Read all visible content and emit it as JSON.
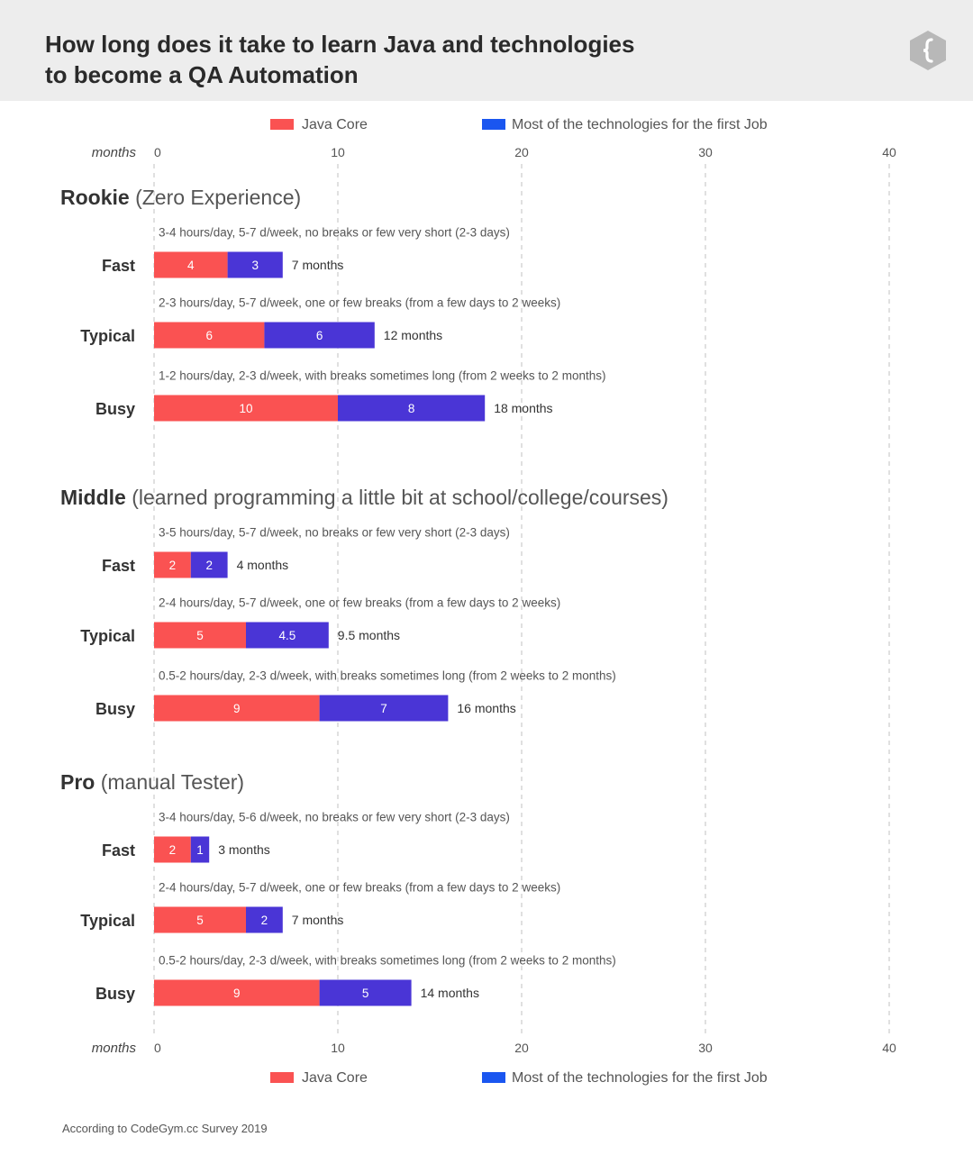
{
  "header": {
    "title": "How long does it take to learn Java and technologies\nto become a QA Automation",
    "logo_icon": "codegym-brace-hexagon-icon"
  },
  "footnote": "According to CodeGym.cc Survey 2019",
  "colors": {
    "java_core": "#fa5252",
    "technologies": "#4a35d6",
    "legend_technologies": "#1a56f0",
    "grid": "#cccccc",
    "header_bg": "#ededed"
  },
  "chart_data": {
    "type": "bar",
    "orientation": "horizontal",
    "stacked": true,
    "axis_label": "months",
    "xlim": [
      0,
      40
    ],
    "ticks": [
      0,
      10,
      20,
      30,
      40
    ],
    "grid": true,
    "legend": [
      "Java Core",
      "Most of the technologies for the first Job"
    ],
    "legend_position": "top and bottom",
    "groups": [
      {
        "name": "Rookie",
        "subtitle": "(Zero Experience)",
        "rows": [
          {
            "label": "Fast",
            "description": "3-4 hours/day, 5-7 d/week, no breaks or few very short (2-3 days)",
            "java_core": 4,
            "java_core_label": "4",
            "technologies": 3,
            "technologies_label": "3",
            "total_label": "7 months"
          },
          {
            "label": "Typical",
            "description": "2-3 hours/day, 5-7 d/week, one or few breaks (from a few days to 2 weeks)",
            "java_core": 6,
            "java_core_label": "6",
            "technologies": 6,
            "technologies_label": "6",
            "total_label": "12 months"
          },
          {
            "label": "Busy",
            "description": "1-2 hours/day, 2-3 d/week, with breaks sometimes long (from 2 weeks to 2 months)",
            "java_core": 10,
            "java_core_label": "10",
            "technologies": 8,
            "technologies_label": "8",
            "total_label": "18 months"
          }
        ]
      },
      {
        "name": "Middle",
        "subtitle": "(learned programming a little bit at school/college/courses)",
        "rows": [
          {
            "label": "Fast",
            "description": "3-5 hours/day, 5-7 d/week, no breaks or few very short (2-3 days)",
            "java_core": 2,
            "java_core_label": "2",
            "technologies": 2,
            "technologies_label": "2",
            "total_label": "4 months"
          },
          {
            "label": "Typical",
            "description": "2-4 hours/day, 5-7 d/week, one or few breaks (from a few days to 2 weeks)",
            "java_core": 5,
            "java_core_label": "5",
            "technologies": 4.5,
            "technologies_label": "4.5",
            "total_label": "9.5 months"
          },
          {
            "label": "Busy",
            "description": "0.5-2 hours/day, 2-3 d/week, with breaks sometimes long (from 2 weeks to 2 months)",
            "java_core": 9,
            "java_core_label": "9",
            "technologies": 7,
            "technologies_label": "7",
            "total_label": "16 months"
          }
        ]
      },
      {
        "name": "Pro",
        "subtitle": "(manual Tester)",
        "rows": [
          {
            "label": "Fast",
            "description": "3-4 hours/day, 5-6 d/week, no breaks or few very short (2-3 days)",
            "java_core": 2,
            "java_core_label": "2",
            "technologies": 1,
            "technologies_label": "1",
            "total_label": "3 months"
          },
          {
            "label": "Typical",
            "description": "2-4 hours/day, 5-7 d/week, one or few breaks (from a few days to 2 weeks)",
            "java_core": 5,
            "java_core_label": "5",
            "technologies": 2,
            "technologies_label": "2",
            "total_label": "7 months"
          },
          {
            "label": "Busy",
            "description": "0.5-2 hours/day, 2-3 d/week, with breaks sometimes long (from 2 weeks to 2 months)",
            "java_core": 9,
            "java_core_label": "9",
            "technologies": 5,
            "technologies_label": "5",
            "total_label": "14 months"
          }
        ]
      }
    ]
  }
}
